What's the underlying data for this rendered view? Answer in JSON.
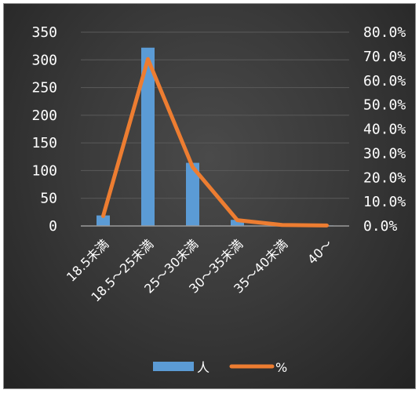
{
  "chart_data": {
    "type": "bar",
    "categories": [
      "18.5未満",
      "18.5～25未満",
      "25～30未満",
      "30～35未満",
      "35～40未満",
      "40～"
    ],
    "series": [
      {
        "name": "人",
        "type": "bar",
        "axis": "left",
        "values": [
          19,
          322,
          114,
          11,
          2,
          1
        ],
        "color": "#5b9bd5"
      },
      {
        "name": "%",
        "type": "line",
        "axis": "right",
        "values": [
          0.041,
          0.689,
          0.243,
          0.024,
          0.004,
          0.002
        ],
        "color": "#ed7d31"
      }
    ],
    "y_left": {
      "min": 0,
      "max": 350,
      "step": 50,
      "tick_labels": [
        "0",
        "50",
        "100",
        "150",
        "200",
        "250",
        "300",
        "350"
      ]
    },
    "y_right": {
      "min": 0,
      "max": 0.8,
      "step": 0.1,
      "tick_labels": [
        "0.0%",
        "10.0%",
        "20.0%",
        "30.0%",
        "40.0%",
        "50.0%",
        "60.0%",
        "70.0%",
        "80.0%"
      ]
    },
    "grid": true,
    "legend_position": "bottom",
    "colors": {
      "background": "#3a3a3a",
      "grid": "#5a5a5a",
      "axis": "#9a9a9a",
      "text": "#ffffff"
    }
  }
}
